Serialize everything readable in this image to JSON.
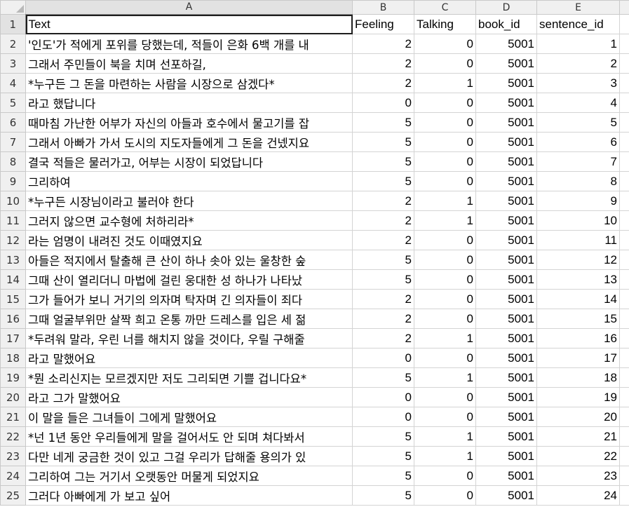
{
  "columns": [
    "A",
    "B",
    "C",
    "D",
    "E",
    "F"
  ],
  "active_cell": "A1",
  "header_row": {
    "row_number": "1",
    "cells": [
      "Text",
      "Feeling",
      "Talking",
      "book_id",
      "sentence_id",
      ""
    ]
  },
  "rows": [
    {
      "n": "2",
      "text": "'인도'가 적에게 포위를 당했는데, 적들이 은화 6백 개를 내",
      "feeling": "2",
      "talking": "0",
      "book_id": "5001",
      "sentence_id": "1"
    },
    {
      "n": "3",
      "text": "그래서 주민들이 북을 치며 선포하길,",
      "feeling": "2",
      "talking": "0",
      "book_id": "5001",
      "sentence_id": "2"
    },
    {
      "n": "4",
      "text": "*누구든 그 돈을 마련하는 사람을 시장으로 삼겠다*",
      "feeling": "2",
      "talking": "1",
      "book_id": "5001",
      "sentence_id": "3"
    },
    {
      "n": "5",
      "text": "라고 했답니다",
      "feeling": "0",
      "talking": "0",
      "book_id": "5001",
      "sentence_id": "4"
    },
    {
      "n": "6",
      "text": "때마침 가난한 어부가 자신의 아들과 호수에서 물고기를 잡",
      "feeling": "5",
      "talking": "0",
      "book_id": "5001",
      "sentence_id": "5"
    },
    {
      "n": "7",
      "text": "그래서 아빠가 가서 도시의 지도자들에게 그 돈을 건넸지요",
      "feeling": "5",
      "talking": "0",
      "book_id": "5001",
      "sentence_id": "6"
    },
    {
      "n": "8",
      "text": "결국 적들은 물러가고, 어부는 시장이 되었답니다",
      "feeling": "5",
      "talking": "0",
      "book_id": "5001",
      "sentence_id": "7"
    },
    {
      "n": "9",
      "text": "그리하여",
      "feeling": "5",
      "talking": "0",
      "book_id": "5001",
      "sentence_id": "8"
    },
    {
      "n": "10",
      "text": "*누구든 시장님이라고 불러야 한다",
      "feeling": "2",
      "talking": "1",
      "book_id": "5001",
      "sentence_id": "9"
    },
    {
      "n": "11",
      "text": " 그러지 않으면 교수형에 처하리라*",
      "feeling": "2",
      "talking": "1",
      "book_id": "5001",
      "sentence_id": "10"
    },
    {
      "n": "12",
      "text": "라는 엄명이  내려진 것도 이때였지요",
      "feeling": "2",
      "talking": "0",
      "book_id": "5001",
      "sentence_id": "11"
    },
    {
      "n": "13",
      "text": "아들은 적지에서 탈출해 큰 산이 하나 솟아 있는 울창한 숲",
      "feeling": "5",
      "talking": "0",
      "book_id": "5001",
      "sentence_id": "12"
    },
    {
      "n": "14",
      "text": "그때 산이 열리더니 마법에 걸린 웅대한 성 하나가 나타났",
      "feeling": "5",
      "talking": "0",
      "book_id": "5001",
      "sentence_id": "13"
    },
    {
      "n": "15",
      "text": "그가 들어가 보니 거기의 의자며 탁자며 긴 의자들이 죄다",
      "feeling": "2",
      "talking": "0",
      "book_id": "5001",
      "sentence_id": "14"
    },
    {
      "n": "16",
      "text": "그때 얼굴부위만 살짝 희고 온통 까만 드레스를 입은 세 젊",
      "feeling": "2",
      "talking": "0",
      "book_id": "5001",
      "sentence_id": "15"
    },
    {
      "n": "17",
      "text": "*두려워 말라, 우린 너를 해치지 않을 것이다, 우릴 구해줄",
      "feeling": "2",
      "talking": "1",
      "book_id": "5001",
      "sentence_id": "16"
    },
    {
      "n": "18",
      "text": "라고 말했어요",
      "feeling": "0",
      "talking": "0",
      "book_id": "5001",
      "sentence_id": "17"
    },
    {
      "n": "19",
      "text": "*뭔 소리신지는 모르겠지만 저도 그리되면 기쁠 겁니다요*",
      "feeling": "5",
      "talking": "1",
      "book_id": "5001",
      "sentence_id": "18"
    },
    {
      "n": "20",
      "text": "라고 그가 말했어요",
      "feeling": "0",
      "talking": "0",
      "book_id": "5001",
      "sentence_id": "19"
    },
    {
      "n": "21",
      "text": "이 말을 들은 그녀들이 그에게 말했어요",
      "feeling": "0",
      "talking": "0",
      "book_id": "5001",
      "sentence_id": "20"
    },
    {
      "n": "22",
      "text": "*넌 1년 동안 우리들에게 말을 걸어서도 안 되며 쳐다봐서",
      "feeling": "5",
      "talking": "1",
      "book_id": "5001",
      "sentence_id": "21"
    },
    {
      "n": "23",
      "text": " 다만 네게 궁금한 것이 있고 그걸 우리가 답해줄 용의가 있",
      "feeling": "5",
      "talking": "1",
      "book_id": "5001",
      "sentence_id": "22"
    },
    {
      "n": "24",
      "text": " 그리하여 그는 거기서 오랫동안 머물게 되었지요",
      "feeling": "5",
      "talking": "0",
      "book_id": "5001",
      "sentence_id": "23"
    },
    {
      "n": "25",
      "text": "그러다 아빠에게 가 보고 싶어",
      "feeling": "5",
      "talking": "0",
      "book_id": "5001",
      "sentence_id": "24"
    }
  ]
}
